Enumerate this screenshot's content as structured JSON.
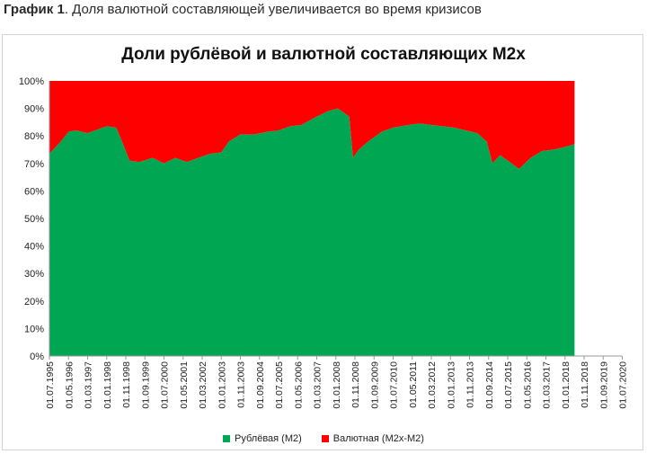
{
  "caption": {
    "lead": "График 1",
    "rest": ". Доля валютной составляющей увеличивается во время кризисов"
  },
  "colors": {
    "ruble": "#00A651",
    "fx": "#FF0000"
  },
  "chart_data": {
    "type": "area",
    "stacked": true,
    "title": "Доли рублёвой и валютной составляющих М2х",
    "xlabel": "",
    "ylabel": "",
    "ylim": [
      0,
      100
    ],
    "y_ticks": [
      "0%",
      "10%",
      "20%",
      "30%",
      "40%",
      "50%",
      "60%",
      "70%",
      "80%",
      "90%",
      "100%"
    ],
    "x_ticks": [
      "01.07.1995",
      "01.05.1996",
      "01.03.1997",
      "01.01.1998",
      "01.11.1998",
      "01.09.1999",
      "01.07.2000",
      "01.05.2001",
      "01.03.2002",
      "01.01.2003",
      "01.11.2003",
      "01.09.2004",
      "01.07.2005",
      "01.05.2006",
      "01.03.2007",
      "01.01.2008",
      "01.11.2008",
      "01.09.2009",
      "01.07.2010",
      "01.05.2011",
      "01.03.2012",
      "01.01.2013",
      "01.11.2013",
      "01.09.2014",
      "01.07.2015",
      "01.05.2016",
      "01.03.2017",
      "01.01.2018",
      "01.11.2018",
      "01.09.2019",
      "01.07.2020"
    ],
    "x": [
      "07.1995",
      "01.1996",
      "05.1996",
      "09.1996",
      "03.1997",
      "09.1997",
      "01.1998",
      "06.1998",
      "09.1998",
      "01.1999",
      "06.1999",
      "01.2000",
      "07.2000",
      "01.2001",
      "07.2001",
      "01.2002",
      "07.2002",
      "01.2003",
      "05.2003",
      "11.2003",
      "06.2004",
      "01.2005",
      "07.2005",
      "01.2006",
      "07.2006",
      "03.2007",
      "09.2007",
      "02.2008",
      "08.2008",
      "10.2008",
      "01.2009",
      "06.2009",
      "01.2010",
      "07.2010",
      "03.2011",
      "09.2011",
      "03.2012",
      "09.2012",
      "03.2013",
      "09.2013",
      "03.2014",
      "08.2014",
      "11.2014",
      "03.2015",
      "07.2015",
      "01.2016",
      "07.2016",
      "01.2017",
      "07.2017",
      "01.2018",
      "06.2018"
    ],
    "series": [
      {
        "name": "Рублёвая (М2)",
        "values": [
          73.5,
          78,
          81.5,
          82,
          81,
          82.5,
          83.5,
          83,
          78,
          71,
          70.5,
          72,
          70,
          72,
          70.5,
          72,
          73.5,
          74,
          78,
          80.5,
          80.5,
          81.5,
          82,
          83.5,
          84,
          87,
          89,
          90,
          87,
          72,
          75,
          78,
          81.5,
          83,
          84,
          84.5,
          84,
          83.5,
          83,
          82,
          81,
          78,
          70,
          73,
          71,
          68,
          72,
          74.5,
          75,
          76,
          77
        ]
      },
      {
        "name": "Валютная (М2х-М2)",
        "values": [
          26.5,
          22,
          18.5,
          18,
          19,
          17.5,
          16.5,
          17,
          22,
          29,
          29.5,
          28,
          30,
          28,
          29.5,
          28,
          26.5,
          26,
          22,
          19.5,
          19.5,
          18.5,
          18,
          16.5,
          16,
          13,
          11,
          10,
          13,
          28,
          25,
          22,
          18.5,
          17,
          16,
          15.5,
          16,
          16.5,
          17,
          18,
          19,
          22,
          30,
          27,
          29,
          32,
          28,
          25.5,
          25,
          24,
          23
        ]
      }
    ],
    "legend_position": "bottom",
    "grid": false
  }
}
